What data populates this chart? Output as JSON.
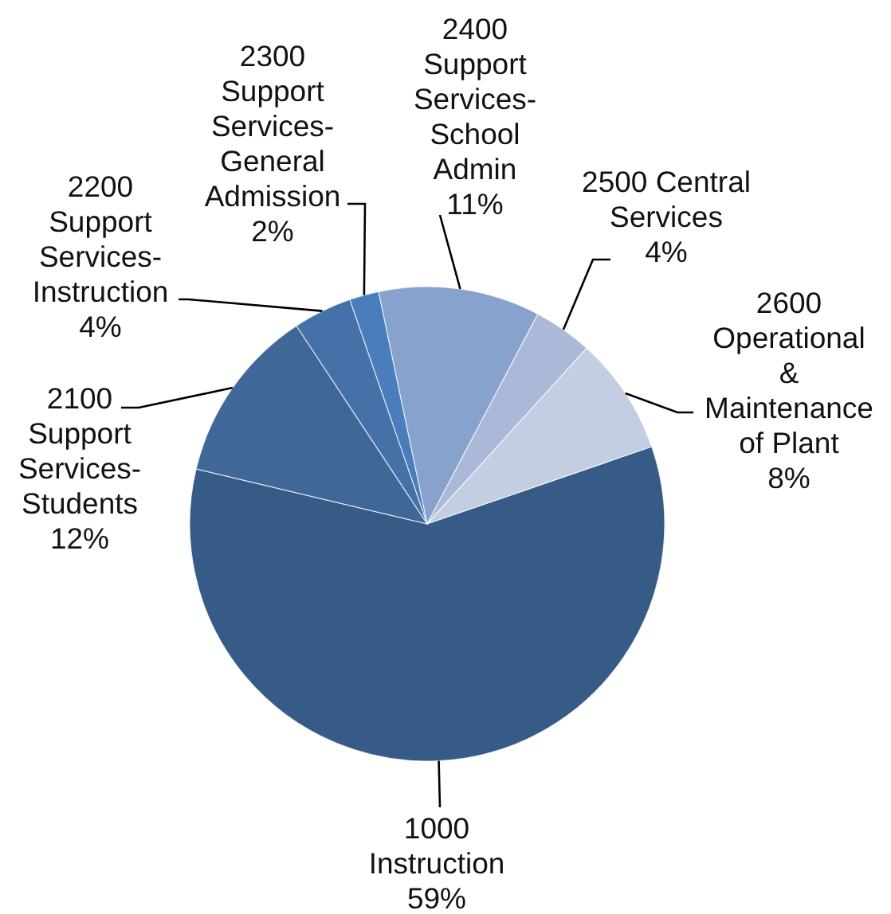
{
  "chart_data": {
    "type": "pie",
    "categories": [
      "1000 Instruction",
      "2100 Support Services-Students",
      "2200 Support Services-Instruction",
      "2300 Support Services-General Admission",
      "2400 Support Services-School Admin",
      "2500 Central Services",
      "2600 Operational & Maintenance of Plant"
    ],
    "values": [
      59,
      12,
      4,
      2,
      11,
      4,
      8
    ],
    "colors": [
      "#365b87",
      "#3f6898",
      "#4471a8",
      "#4a7dbc",
      "#87a2cc",
      "#aab9d7",
      "#c3cee2"
    ],
    "value_labels": [
      "59%",
      "12%",
      "4%",
      "2%",
      "11%",
      "4%",
      "8%"
    ]
  }
}
